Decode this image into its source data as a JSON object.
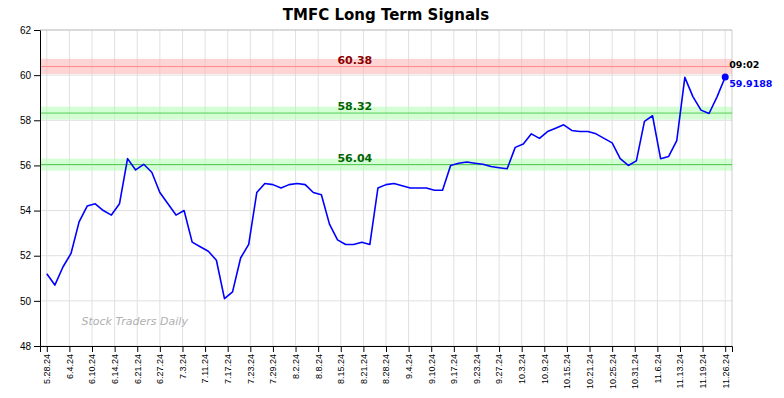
{
  "chart_data": {
    "type": "line",
    "title": "TMFC Long Term Signals",
    "color": "blue",
    "x": [
      0,
      0.3571,
      0.7143,
      1.0714,
      1.4286,
      1.7857,
      2.1429,
      2.5,
      2.8571,
      3.2143,
      3.5714,
      3.9286,
      4.2857,
      4.6429,
      5,
      5.3571,
      5.7143,
      6.0714,
      6.4286,
      6.7857,
      7.1429,
      7.5,
      7.8571,
      8.2143,
      8.5714,
      8.9286,
      9.2857,
      9.6429,
      10,
      10.3571,
      10.7143,
      11.0714,
      11.4286,
      11.7857,
      12.1429,
      12.5,
      12.8571,
      13.2143,
      13.5714,
      13.9286,
      14.2857,
      14.6429,
      15,
      15.3571,
      15.7143,
      16.0714,
      16.4286,
      16.7857,
      17.1429,
      17.5,
      17.8571,
      18.2143,
      18.5714,
      18.9286,
      19.2857,
      19.6429,
      20,
      20.3571,
      20.7143,
      21.0714,
      21.4286,
      21.7857,
      22.1429,
      22.5,
      22.8571,
      23.2143,
      23.5714,
      23.9286,
      24.2857,
      24.6429,
      25,
      25.3571,
      25.7143,
      26.0714,
      26.4286,
      26.7857,
      27.1429,
      27.5,
      27.8571,
      28.2143,
      28.5714,
      28.9286,
      29.2857,
      29.6429,
      30
    ],
    "values": [
      51.2,
      50.7,
      51.5,
      52.1,
      53.5,
      54.2,
      54.3,
      54.0,
      53.8,
      54.3,
      56.3,
      55.8,
      56.05,
      55.7,
      54.8,
      54.3,
      53.8,
      54.0,
      52.6,
      52.4,
      52.2,
      51.8,
      50.1,
      50.4,
      51.9,
      52.5,
      54.8,
      55.2,
      55.15,
      55.0,
      55.15,
      55.2,
      55.15,
      54.8,
      54.7,
      53.4,
      52.7,
      52.5,
      52.5,
      52.6,
      52.5,
      55.0,
      55.15,
      55.2,
      55.1,
      55.0,
      55.0,
      55.0,
      54.9,
      54.9,
      56.0,
      56.1,
      56.15,
      56.1,
      56.05,
      55.95,
      55.9,
      55.85,
      56.8,
      56.95,
      57.4,
      57.2,
      57.5,
      57.65,
      57.8,
      57.55,
      57.5,
      57.5,
      57.4,
      57.2,
      57.0,
      56.3,
      56.0,
      56.2,
      57.95,
      58.2,
      56.3,
      56.4,
      57.1,
      59.9,
      59.05,
      58.45,
      58.3,
      59.05,
      59.9188
    ],
    "xlim": [
      -0.3,
      30.3
    ],
    "xticks": [
      {
        "value": 0,
        "label": "5.28.24"
      },
      {
        "value": 1,
        "label": "6.4.24"
      },
      {
        "value": 2,
        "label": "6.10.24"
      },
      {
        "value": 3,
        "label": "6.14.24"
      },
      {
        "value": 4,
        "label": "6.21.24"
      },
      {
        "value": 5,
        "label": "6.27.24"
      },
      {
        "value": 6,
        "label": "7.3.24"
      },
      {
        "value": 7,
        "label": "7.11.24"
      },
      {
        "value": 8,
        "label": "7.17.24"
      },
      {
        "value": 9,
        "label": "7.23.24"
      },
      {
        "value": 10,
        "label": "7.29.24"
      },
      {
        "value": 11,
        "label": "8.2.24"
      },
      {
        "value": 12,
        "label": "8.8.24"
      },
      {
        "value": 13,
        "label": "8.15.24"
      },
      {
        "value": 14,
        "label": "8.21.24"
      },
      {
        "value": 15,
        "label": "8.28.24"
      },
      {
        "value": 16,
        "label": "9.4.24"
      },
      {
        "value": 17,
        "label": "9.10.24"
      },
      {
        "value": 18,
        "label": "9.17.24"
      },
      {
        "value": 19,
        "label": "9.23.24"
      },
      {
        "value": 20,
        "label": "9.27.24"
      },
      {
        "value": 21,
        "label": "10.3.24"
      },
      {
        "value": 22,
        "label": "10.9.24"
      },
      {
        "value": 23,
        "label": "10.15.24"
      },
      {
        "value": 24,
        "label": "10.21.24"
      },
      {
        "value": 25,
        "label": "10.25.24"
      },
      {
        "value": 26,
        "label": "10.31.24"
      },
      {
        "value": 27,
        "label": "11.6.24"
      },
      {
        "value": 28,
        "label": "11.13.24"
      },
      {
        "value": 29,
        "label": "11.19.24"
      },
      {
        "value": 30,
        "label": "11.26.24"
      }
    ],
    "ylim": [
      48,
      62
    ],
    "yticks": [
      48,
      50,
      52,
      54,
      56,
      58,
      60,
      62
    ],
    "grid": true,
    "bands": [
      {
        "lo": 60.05,
        "hi": 60.72,
        "color": "#ffb0b0"
      },
      {
        "lo": 58.04,
        "hi": 58.6,
        "color": "#b0ffb0"
      },
      {
        "lo": 55.77,
        "hi": 56.3,
        "color": "#b0ffb0"
      }
    ],
    "hlines": [
      {
        "value": 60.38,
        "color": "#ff8888",
        "label_color": "darkred"
      },
      {
        "value": 58.32,
        "color": "#55cc55",
        "label_color": "darkgreen"
      },
      {
        "value": 56.04,
        "color": "#55cc55",
        "label_color": "darkgreen"
      }
    ],
    "last_point": {
      "label": "09:02",
      "price": 59.9188,
      "price_color": "blue"
    },
    "watermark": {
      "text": "Stock Traders Daily",
      "color": "#b0b0b0"
    }
  }
}
